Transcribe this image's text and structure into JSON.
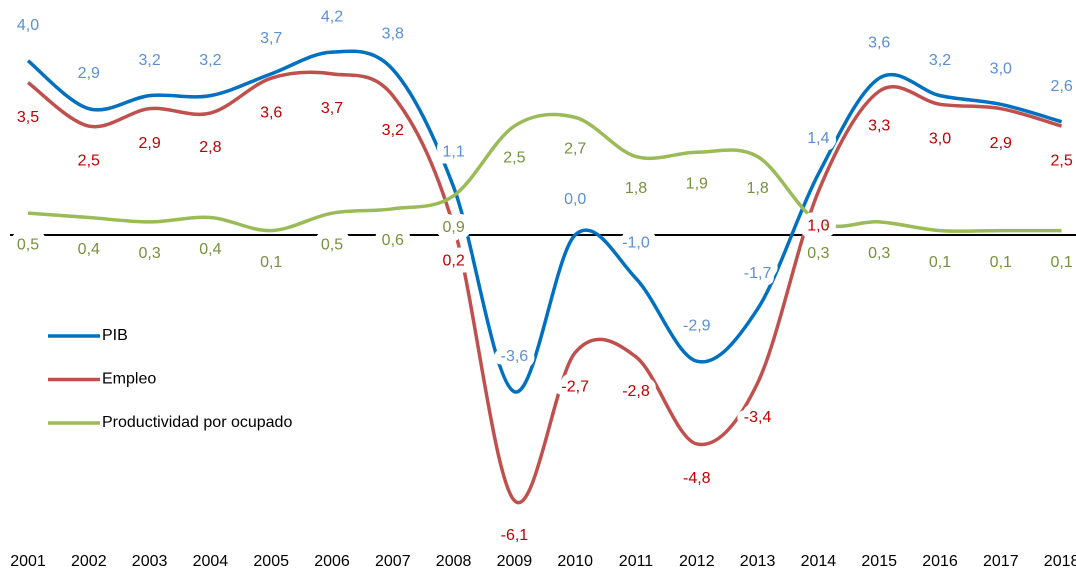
{
  "chart_data": {
    "type": "line",
    "categories": [
      "2001",
      "2002",
      "2003",
      "2004",
      "2005",
      "2006",
      "2007",
      "2008",
      "2009",
      "2010",
      "2011",
      "2012",
      "2013",
      "2014",
      "2015",
      "2016",
      "2017",
      "2018"
    ],
    "ylim": [
      -6.5,
      4.5
    ],
    "legend": "left",
    "series": [
      {
        "name": "PIB",
        "color": "#0070c0",
        "label_color": "#5b8fd6",
        "values": [
          4.0,
          2.9,
          3.2,
          3.2,
          3.7,
          4.2,
          3.8,
          1.1,
          -3.6,
          0.0,
          -1.0,
          -2.9,
          -1.7,
          1.4,
          3.6,
          3.2,
          3.0,
          2.6
        ],
        "value_labels": [
          "4,0",
          "2,9",
          "3,2",
          "3,2",
          "3,7",
          "4,2",
          "3,8",
          "1,1",
          "-3,6",
          "0,0",
          "-1,0",
          "-2,9",
          "-1,7",
          "1,4",
          "3,6",
          "3,2",
          "3,0",
          "2,6"
        ]
      },
      {
        "name": "Empleo",
        "color": "#c0504d",
        "label_color": "#c00000",
        "values": [
          3.5,
          2.5,
          2.9,
          2.8,
          3.6,
          3.7,
          3.2,
          0.2,
          -6.1,
          -2.7,
          -2.8,
          -4.8,
          -3.4,
          1.0,
          3.3,
          3.0,
          2.9,
          2.5
        ],
        "value_labels": [
          "3,5",
          "2,5",
          "2,9",
          "2,8",
          "3,6",
          "3,7",
          "3,2",
          "0,2",
          "-6,1",
          "-2,7",
          "-2,8",
          "-4,8",
          "-3,4",
          "1,0",
          "3,3",
          "3,0",
          "2,9",
          "2,5"
        ]
      },
      {
        "name": "Productividad por ocupado",
        "color": "#9bbb59",
        "label_color": "#76923c",
        "values": [
          0.5,
          0.4,
          0.3,
          0.4,
          0.1,
          0.5,
          0.6,
          0.9,
          2.5,
          2.7,
          1.8,
          1.9,
          1.8,
          0.3,
          0.3,
          0.1,
          0.1,
          0.1
        ],
        "value_labels": [
          "0,5",
          "0,4",
          "0,3",
          "0,4",
          "0,1",
          "0,5",
          "0,6",
          "0,9",
          "2,5",
          "2,7",
          "1,8",
          "1,9",
          "1,8",
          "0,3",
          "0,3",
          "0,1",
          "0,1",
          "0,1"
        ]
      }
    ]
  }
}
